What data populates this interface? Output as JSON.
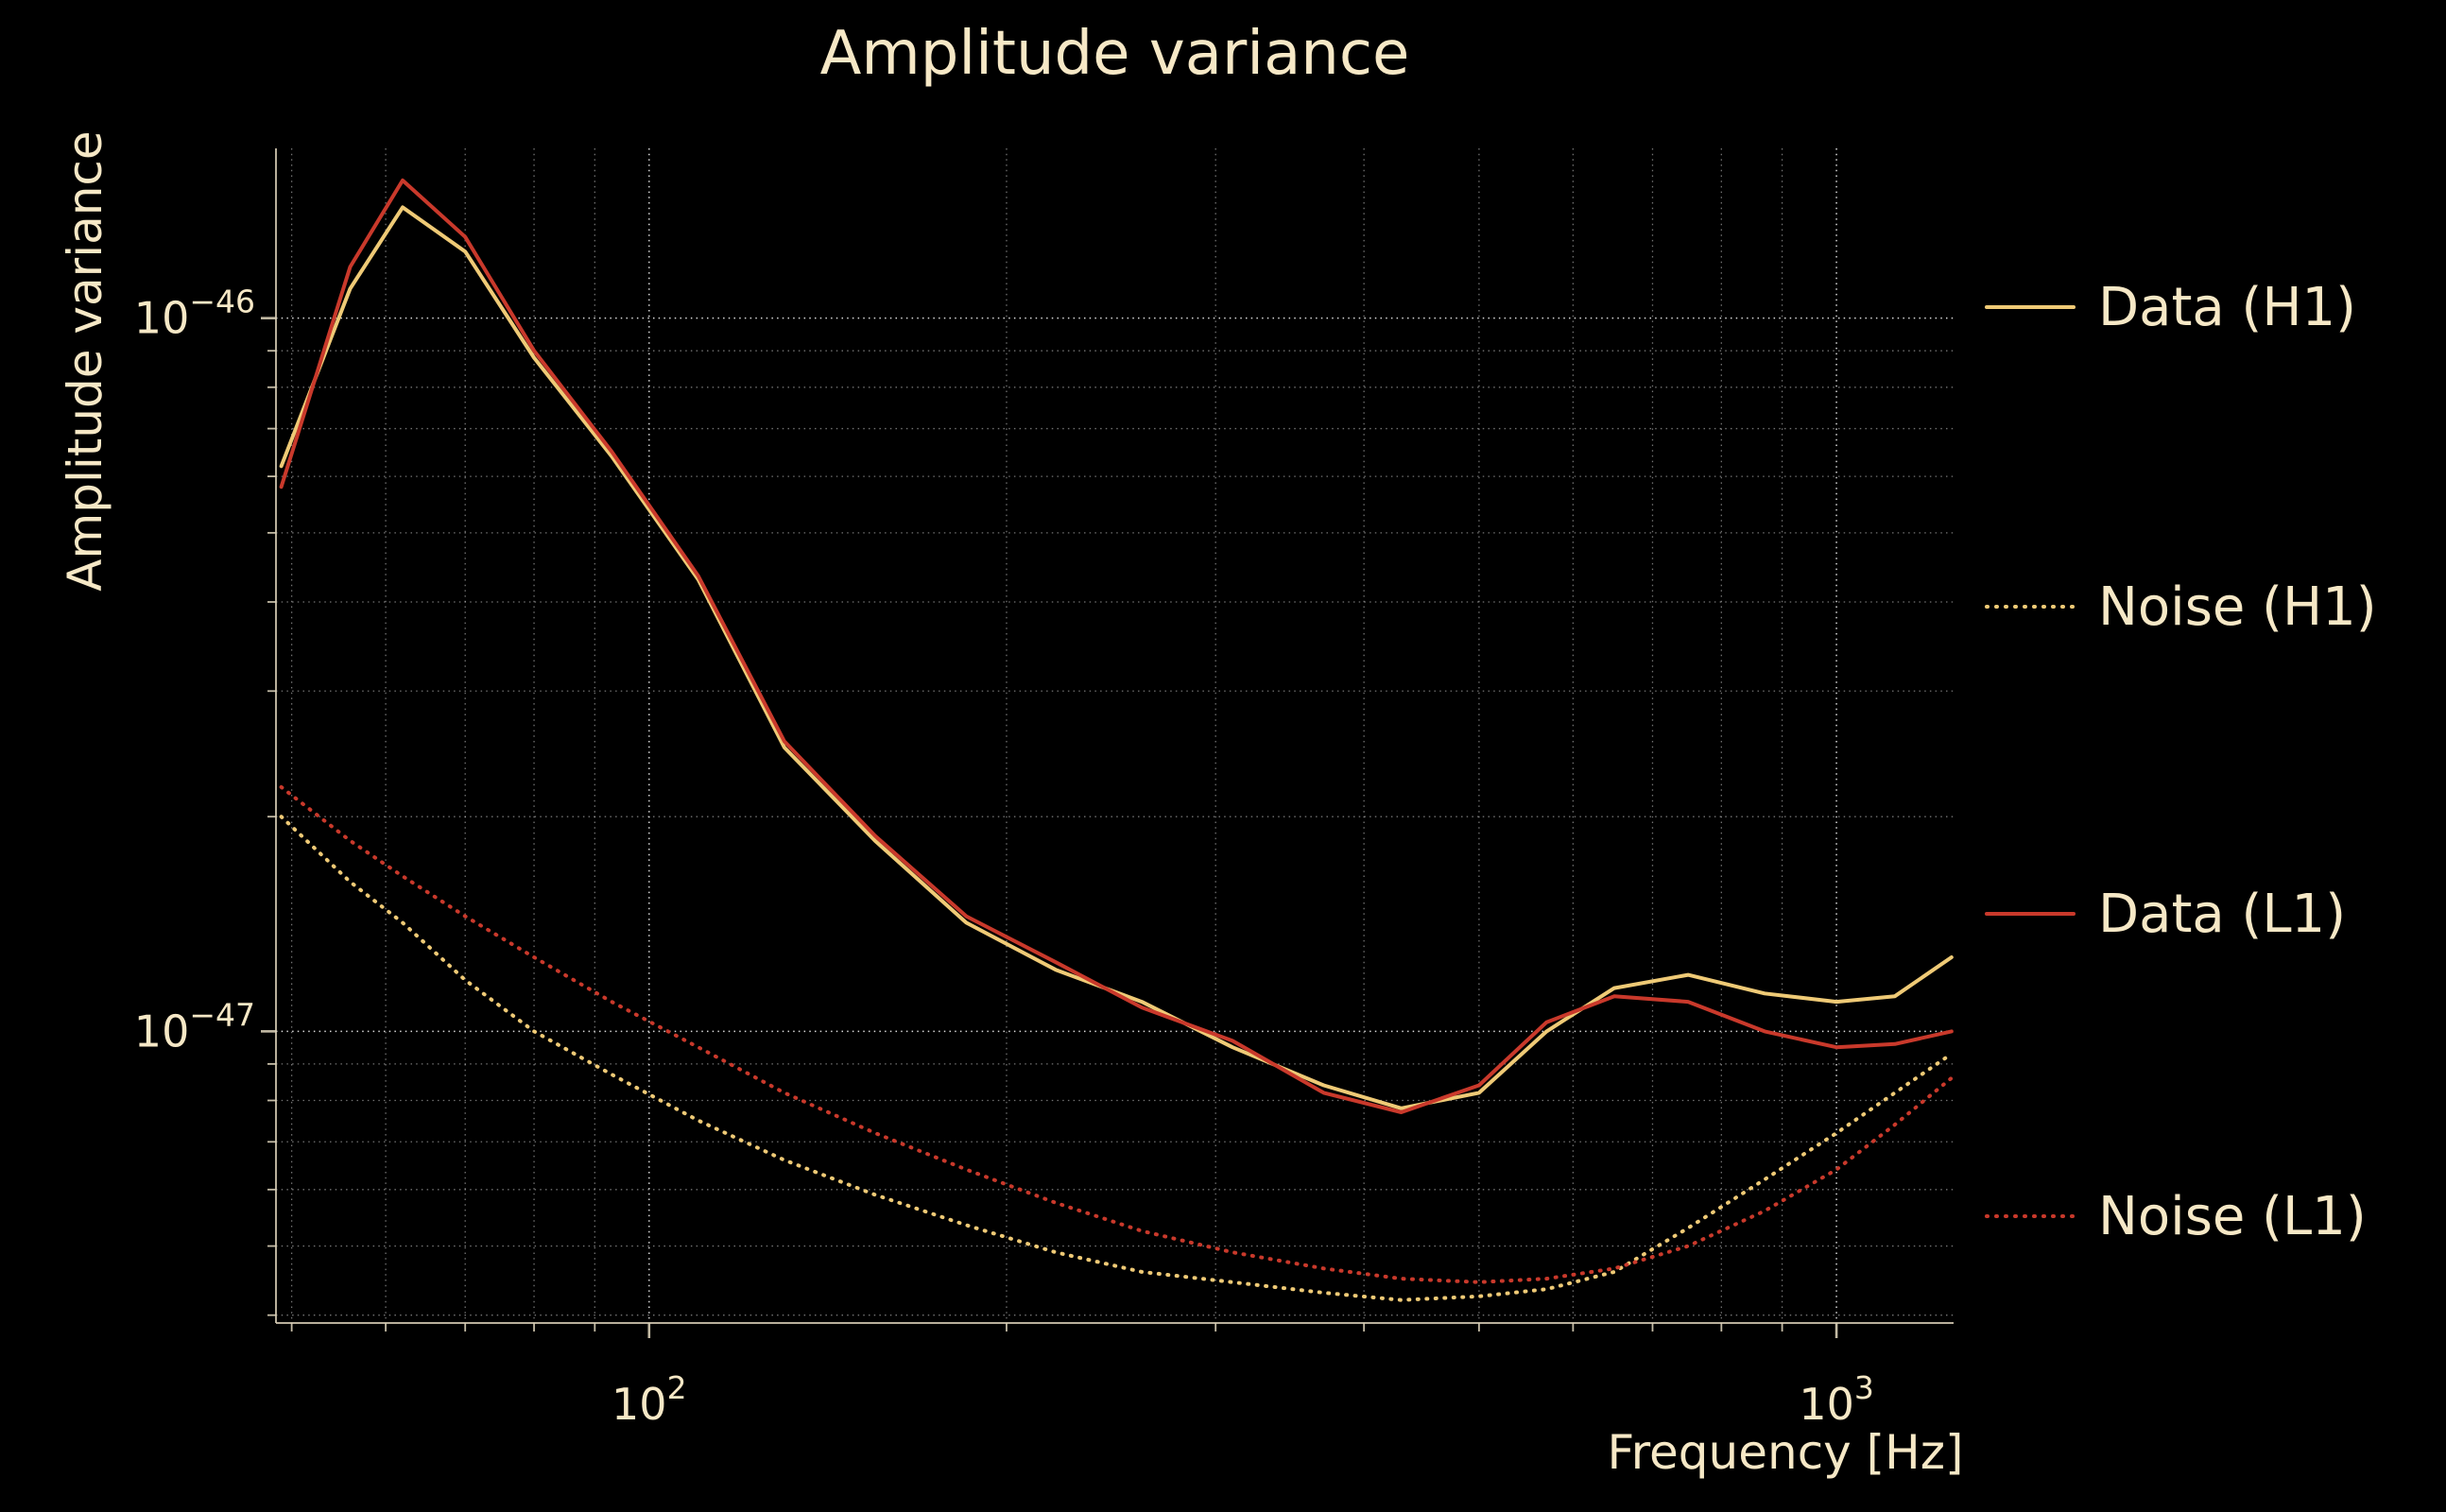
{
  "page": {
    "background": "#000000",
    "text_color": "#F6E8C6",
    "grid_color": "#FFFFFF"
  },
  "chart_data": {
    "type": "line",
    "title": "Amplitude variance",
    "xlabel": "Frequency [Hz]",
    "ylabel": "Amplitude variance",
    "x_scale": "log",
    "y_scale": "log",
    "grid": true,
    "legend_position": "right-outside",
    "xlim": [
      48.5,
      1255
    ],
    "ylim": [
      3.9e-48,
      1.73e-46
    ],
    "x_ticks": [
      {
        "v": 100,
        "base": "10",
        "exp": "2"
      },
      {
        "v": 1000,
        "base": "10",
        "exp": "3"
      }
    ],
    "y_ticks": [
      {
        "v": 1e-46,
        "base": "10",
        "exp": "−46"
      },
      {
        "v": 1e-47,
        "base": "10",
        "exp": "−47"
      }
    ],
    "x": [
      49,
      56,
      62,
      70,
      80,
      93,
      110,
      130,
      155,
      185,
      220,
      260,
      310,
      370,
      430,
      500,
      570,
      650,
      750,
      870,
      1000,
      1120,
      1250
    ],
    "series": [
      {
        "name": "Data (H1)",
        "style": "solid",
        "color": "#EFCA76",
        "values": [
          6.2e-47,
          1.1e-46,
          1.43e-46,
          1.24e-46,
          8.8e-47,
          6.4e-47,
          4.3e-47,
          2.5e-47,
          1.85e-47,
          1.42e-47,
          1.22e-47,
          1.1e-47,
          9.5e-48,
          8.4e-48,
          7.8e-48,
          8.2e-48,
          1e-47,
          1.15e-47,
          1.2e-47,
          1.13e-47,
          1.1e-47,
          1.12e-47,
          1.27e-47
        ]
      },
      {
        "name": "Noise (H1)",
        "style": "dotted",
        "color": "#EFCA76",
        "values": [
          2e-47,
          1.62e-47,
          1.42e-47,
          1.18e-47,
          1e-47,
          8.7e-48,
          7.5e-48,
          6.6e-48,
          5.9e-48,
          5.35e-48,
          4.9e-48,
          4.6e-48,
          4.45e-48,
          4.3e-48,
          4.2e-48,
          4.25e-48,
          4.35e-48,
          4.6e-48,
          5.3e-48,
          6.2e-48,
          7.2e-48,
          8.2e-48,
          9.3e-48
        ]
      },
      {
        "name": "Data (L1)",
        "style": "solid",
        "color": "#C9392B",
        "values": [
          5.8e-47,
          1.18e-46,
          1.56e-46,
          1.3e-46,
          9e-47,
          6.5e-47,
          4.35e-47,
          2.55e-47,
          1.88e-47,
          1.45e-47,
          1.25e-47,
          1.08e-47,
          9.7e-48,
          8.2e-48,
          7.7e-48,
          8.4e-48,
          1.03e-47,
          1.12e-47,
          1.1e-47,
          1e-47,
          9.5e-48,
          9.6e-48,
          1e-47
        ]
      },
      {
        "name": "Noise (L1)",
        "style": "dotted",
        "color": "#C9392B",
        "values": [
          2.2e-47,
          1.85e-47,
          1.65e-47,
          1.45e-47,
          1.27e-47,
          1.1e-47,
          9.5e-48,
          8.2e-48,
          7.2e-48,
          6.4e-48,
          5.75e-48,
          5.25e-48,
          4.9e-48,
          4.65e-48,
          4.5e-48,
          4.45e-48,
          4.5e-48,
          4.65e-48,
          5e-48,
          5.6e-48,
          6.4e-48,
          7.4e-48,
          8.6e-48
        ]
      }
    ]
  }
}
